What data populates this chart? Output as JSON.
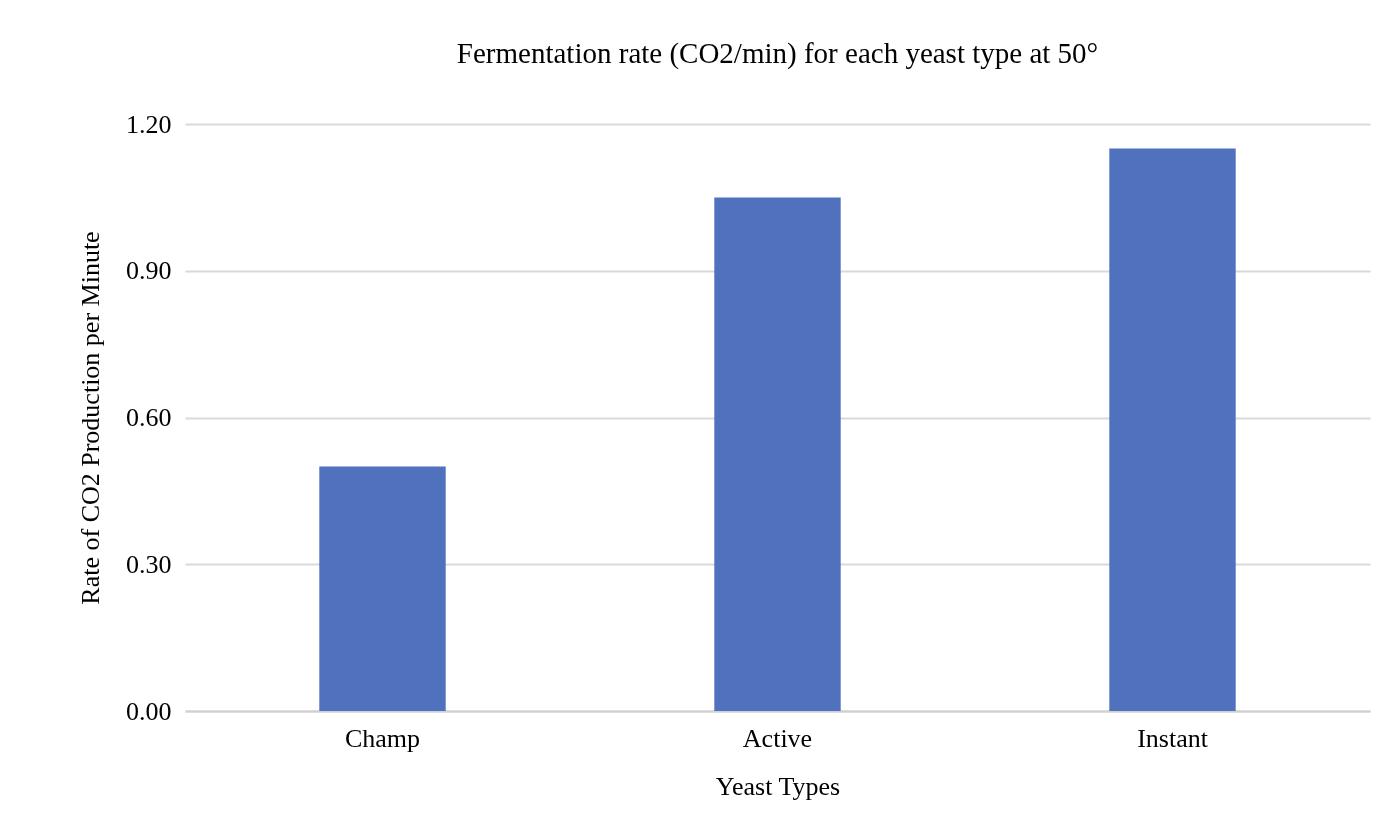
{
  "chart_data": {
    "type": "bar",
    "title": "Fermentation rate (CO2/min) for each yeast type at 50°",
    "xlabel": "Yeast Types",
    "ylabel": "Rate of CO2 Production per Minute",
    "categories": [
      "Champ",
      "Active",
      "Instant"
    ],
    "values": [
      0.5,
      1.05,
      1.15
    ],
    "color": "#4f71be",
    "ylim": [
      0,
      1.2
    ],
    "yticks": [
      {
        "value": 0,
        "label": "0.00"
      },
      {
        "value": 0.3,
        "label": "0.30"
      },
      {
        "value": 0.6,
        "label": "0.60"
      },
      {
        "value": 0.9,
        "label": "0.90"
      },
      {
        "value": 1.2,
        "label": "1.20"
      }
    ],
    "grid": "y"
  }
}
